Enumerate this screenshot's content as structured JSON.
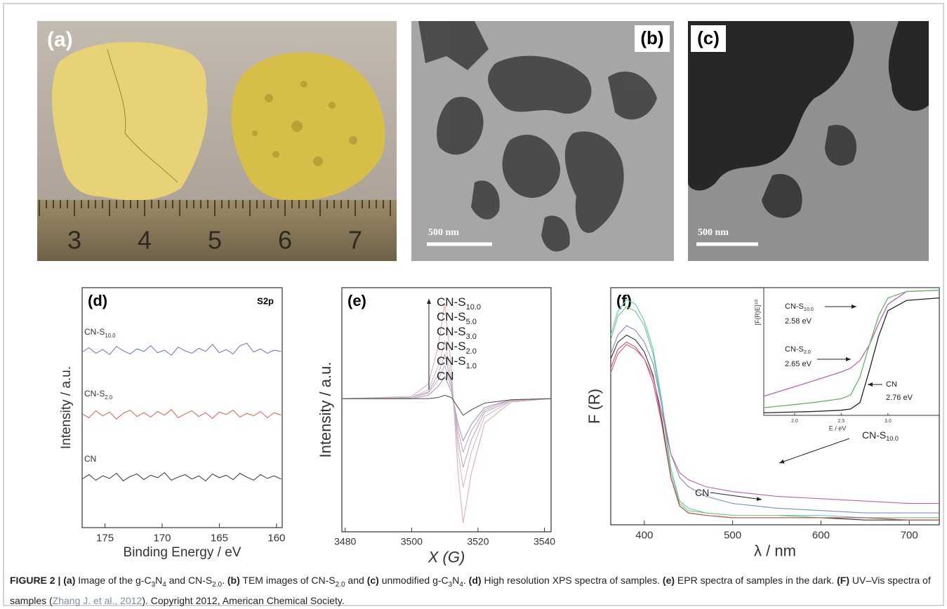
{
  "photos": [
    {
      "label": "(a)",
      "ruler": [
        3,
        4,
        5,
        6,
        7
      ]
    },
    {
      "label": "(b)",
      "scale": "500 nm"
    },
    {
      "label": "(c)",
      "scale": "500 nm"
    }
  ],
  "chart_data": [
    {
      "type": "line",
      "label": "(d)",
      "annotation": "S2p",
      "x_label": "Binding Energy / eV",
      "y_label": "Intensity / a.u.",
      "xlim": [
        177,
        159.5
      ],
      "xticks": [
        175,
        170,
        165,
        160
      ],
      "ylim": [
        -0.3,
        3.5
      ],
      "x": [
        177,
        176.4,
        175.8,
        175.2,
        174.6,
        174,
        173.4,
        172.8,
        172.2,
        171.6,
        171,
        170.4,
        169.8,
        169.2,
        168.6,
        168,
        167.4,
        166.8,
        166.2,
        165.6,
        165,
        164.4,
        163.8,
        163.2,
        162.6,
        162,
        161.4,
        160.8,
        160.2,
        159.6
      ],
      "series": [
        {
          "name": {
            "text": "CN-S",
            "sub": "10.0"
          },
          "color": "#6f7fc4",
          "values": [
            2.48,
            2.55,
            2.46,
            2.52,
            2.44,
            2.57,
            2.5,
            2.45,
            2.53,
            2.49,
            2.58,
            2.47,
            2.51,
            2.43,
            2.56,
            2.5,
            2.46,
            2.54,
            2.49,
            2.6,
            2.47,
            2.52,
            2.45,
            2.58,
            2.62,
            2.48,
            2.53,
            2.46,
            2.51,
            2.49
          ]
        },
        {
          "name": {
            "text": "CN-S",
            "sub": "2.0"
          },
          "color": "#e06a5a",
          "values": [
            1.5,
            1.44,
            1.55,
            1.47,
            1.53,
            1.42,
            1.51,
            1.56,
            1.46,
            1.52,
            1.45,
            1.54,
            1.48,
            1.57,
            1.44,
            1.5,
            1.55,
            1.46,
            1.52,
            1.43,
            1.53,
            1.49,
            1.56,
            1.45,
            1.51,
            1.47,
            1.54,
            1.44,
            1.52,
            1.48
          ]
        },
        {
          "name": "CN",
          "color": "#444444",
          "values": [
            0.47,
            0.54,
            0.45,
            0.52,
            0.48,
            0.56,
            0.44,
            0.51,
            0.55,
            0.46,
            0.53,
            0.49,
            0.57,
            0.45,
            0.5,
            0.54,
            0.47,
            0.52,
            0.44,
            0.55,
            0.49,
            0.53,
            0.46,
            0.56,
            0.5,
            0.45,
            0.54,
            0.48,
            0.52,
            0.47
          ]
        }
      ]
    },
    {
      "type": "line",
      "label": "(e)",
      "x_label": "X (G)",
      "y_label": "Intensity / a.u.",
      "xlim": [
        3479,
        3542
      ],
      "xticks": [
        3480,
        3500,
        3520,
        3540
      ],
      "ylim": [
        -1.2,
        1.0
      ],
      "x": [
        3479,
        3500,
        3505,
        3508,
        3510,
        3512,
        3514,
        3515.5,
        3518,
        3522,
        3530,
        3542
      ],
      "series": [
        {
          "name": {
            "text": "CN-S",
            "sub": "10.0"
          },
          "color": "#e0b0b0",
          "values": [
            0,
            0.02,
            0.13,
            0.47,
            0.86,
            0.26,
            -0.67,
            -1.12,
            -0.67,
            -0.22,
            -0.03,
            0
          ]
        },
        {
          "name": {
            "text": "CN-S",
            "sub": "5.0"
          },
          "color": "#d8b8d0",
          "values": [
            0,
            0.01,
            0.08,
            0.29,
            0.52,
            0.16,
            -0.48,
            -0.8,
            -0.48,
            -0.16,
            -0.02,
            0
          ]
        },
        {
          "name": {
            "text": "CN-S",
            "sub": "3.0"
          },
          "color": "#c8a8b8",
          "values": [
            0,
            0.01,
            0.06,
            0.22,
            0.4,
            0.12,
            -0.37,
            -0.62,
            -0.37,
            -0.12,
            -0.02,
            0
          ]
        },
        {
          "name": {
            "text": "CN-S",
            "sub": "2.0"
          },
          "color": "#b8b0d0",
          "values": [
            0,
            0.01,
            0.05,
            0.17,
            0.3,
            0.09,
            -0.29,
            -0.48,
            -0.29,
            -0.1,
            -0.01,
            0
          ]
        },
        {
          "name": {
            "text": "CN-S",
            "sub": "1.0"
          },
          "color": "#a898c0",
          "values": [
            0,
            0,
            0.03,
            0.11,
            0.2,
            0.06,
            -0.23,
            -0.38,
            -0.23,
            -0.08,
            -0.01,
            0
          ]
        },
        {
          "name": "CN",
          "color": "#555555",
          "values": [
            0,
            0,
            0,
            0.01,
            0.03,
            0.01,
            -0.08,
            -0.15,
            -0.1,
            -0.04,
            -0.01,
            0
          ]
        }
      ]
    },
    {
      "type": "line",
      "label": "(f)",
      "x_label": "λ / nm",
      "y_label": "F (R)",
      "xlim": [
        362,
        734
      ],
      "xticks": [
        400,
        500,
        600,
        700
      ],
      "ylim": [
        0,
        1
      ],
      "x": [
        362,
        370,
        380,
        390,
        400,
        410,
        420,
        430,
        440,
        450,
        470,
        500,
        550,
        600,
        650,
        700,
        734
      ],
      "series": [
        {
          "color": "#5bc8c8",
          "values": [
            0.8,
            0.9,
            0.95,
            0.93,
            0.86,
            0.74,
            0.52,
            0.24,
            0.1,
            0.07,
            0.05,
            0.04,
            0.04,
            0.04,
            0.03,
            0.03,
            0.03
          ]
        },
        {
          "color": "#7ac27a",
          "values": [
            0.78,
            0.88,
            0.92,
            0.9,
            0.84,
            0.72,
            0.5,
            0.22,
            0.09,
            0.06,
            0.05,
            0.04,
            0.04,
            0.03,
            0.03,
            0.03,
            0.03
          ]
        },
        {
          "color": "#7a8fc8",
          "values": [
            0.72,
            0.8,
            0.84,
            0.82,
            0.77,
            0.68,
            0.5,
            0.3,
            0.2,
            0.16,
            0.12,
            0.09,
            0.07,
            0.06,
            0.05,
            0.05,
            0.05
          ]
        },
        {
          "color": "#333333",
          "values": [
            0.7,
            0.77,
            0.8,
            0.78,
            0.73,
            0.63,
            0.44,
            0.2,
            0.08,
            0.05,
            0.04,
            0.03,
            0.03,
            0.03,
            0.02,
            0.02,
            0.02
          ]
        },
        {
          "color": "#d05050",
          "values": [
            0.66,
            0.74,
            0.77,
            0.75,
            0.7,
            0.6,
            0.42,
            0.2,
            0.08,
            0.05,
            0.04,
            0.03,
            0.03,
            0.03,
            0.03,
            0.02,
            0.02
          ]
        },
        {
          "color": "#c060b0",
          "values": [
            0.64,
            0.72,
            0.76,
            0.74,
            0.7,
            0.62,
            0.47,
            0.3,
            0.22,
            0.19,
            0.16,
            0.14,
            0.12,
            0.11,
            0.1,
            0.09,
            0.09
          ]
        }
      ],
      "annotations": [
        {
          "text": "CN-S",
          "sub": "10.0"
        },
        {
          "text": "CN"
        }
      ]
    },
    {
      "type": "line",
      "x_label": "E / eV",
      "y_label": {
        "text": "[F(R)E]",
        "sup": "1/2"
      },
      "xlim": [
        1.67,
        3.55
      ],
      "xticks": [
        {
          "value": 2,
          "label": "2.0"
        },
        {
          "value": 2.5,
          "label": "2.5"
        },
        {
          "value": 3,
          "label": "3.0"
        }
      ],
      "ylim": [
        0,
        1
      ],
      "x": [
        1.67,
        2.2,
        2.5,
        2.6,
        2.7,
        2.8,
        2.9,
        3.0,
        3.2,
        3.55
      ],
      "series": [
        {
          "color": "#c060b0",
          "values": [
            0.15,
            0.27,
            0.34,
            0.37,
            0.43,
            0.55,
            0.72,
            0.87,
            0.97,
            0.98
          ]
        },
        {
          "color": "#5fb85f",
          "values": [
            0.06,
            0.1,
            0.13,
            0.16,
            0.3,
            0.55,
            0.78,
            0.92,
            0.97,
            0.98
          ]
        },
        {
          "color": "#222222",
          "values": [
            0.02,
            0.03,
            0.04,
            0.05,
            0.1,
            0.35,
            0.62,
            0.82,
            0.9,
            0.92
          ]
        }
      ],
      "annotations": [
        {
          "text": "CN-S",
          "sub": "10.0"
        },
        {
          "text": "2.58 eV"
        },
        {
          "text": "CN-S",
          "sub": "2.0"
        },
        {
          "text": "2.65 eV"
        },
        {
          "text": "CN"
        },
        {
          "text": "2.76 eV"
        }
      ]
    }
  ],
  "caption": [
    {
      "text": "FIGURE 2 | ",
      "style": "bold"
    },
    {
      "text": "(a)",
      "style": "bold"
    },
    {
      "text": " Image of the g-C"
    },
    {
      "text": "3",
      "style": "sub"
    },
    {
      "text": "N"
    },
    {
      "text": "4",
      "style": "sub"
    },
    {
      "text": " and CN-S"
    },
    {
      "text": "2.0",
      "style": "sub"
    },
    {
      "text": ". "
    },
    {
      "text": "(b)",
      "style": "bold"
    },
    {
      "text": " TEM images of CN-S"
    },
    {
      "text": "2.0",
      "style": "sub"
    },
    {
      "text": " and "
    },
    {
      "text": "(c)",
      "style": "bold"
    },
    {
      "text": " unmodified g-C"
    },
    {
      "text": "3",
      "style": "sub"
    },
    {
      "text": "N"
    },
    {
      "text": "4",
      "style": "sub"
    },
    {
      "text": ". "
    },
    {
      "text": "(d)",
      "style": "bold"
    },
    {
      "text": " High resolution XPS spectra of samples. "
    },
    {
      "text": "(e)",
      "style": "bold"
    },
    {
      "text": " EPR spectra of samples in the dark. "
    },
    {
      "text": "(F)",
      "style": "bold"
    },
    {
      "text": " UV–Vis spectra of samples ("
    },
    {
      "text": "Zhang J. et al., 2012",
      "style": "link"
    },
    {
      "text": "). Copyright 2012, American Chemical Society."
    }
  ]
}
